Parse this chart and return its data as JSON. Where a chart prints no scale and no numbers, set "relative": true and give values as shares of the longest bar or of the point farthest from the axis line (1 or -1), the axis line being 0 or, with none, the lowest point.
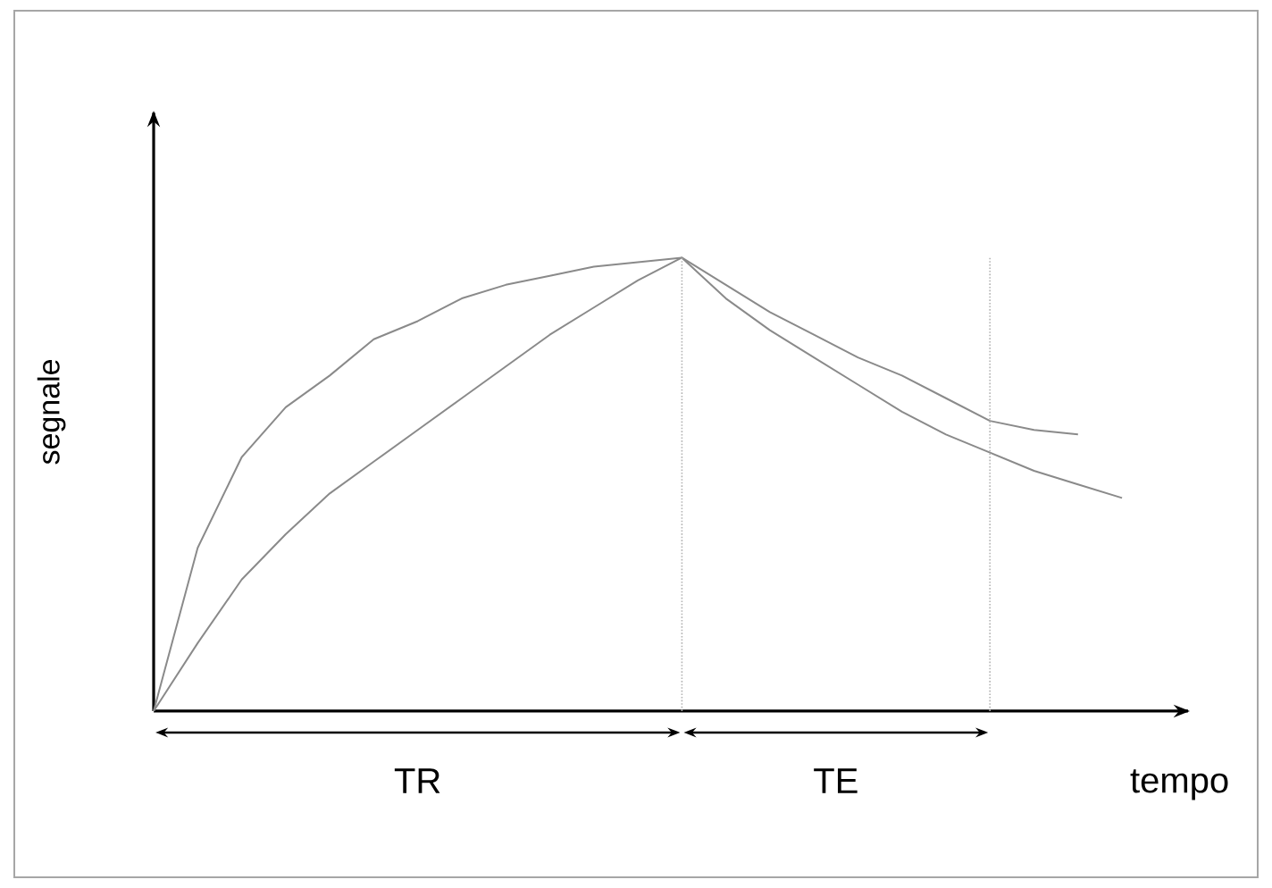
{
  "chart_data": {
    "type": "line",
    "relative": true,
    "xlabel": "tempo",
    "ylabel": "segnale",
    "categories": [
      null,
      null,
      null,
      null,
      null,
      null,
      null,
      null,
      null,
      null,
      null,
      null,
      null,
      null,
      null,
      null,
      null,
      null,
      null,
      null,
      null,
      null,
      null
    ],
    "series": [
      {
        "color": "#8a8a8a",
        "values": [
          0,
          0.36,
          0.56,
          0.67,
          0.74,
          0.82,
          0.86,
          0.91,
          0.94,
          0.96,
          0.98,
          0.99,
          1,
          0.94,
          0.88,
          0.83,
          0.78,
          0.74,
          0.69,
          0.64,
          0.62,
          0.61,
          null
        ]
      },
      {
        "color": "#8a8a8a",
        "values": [
          0,
          0.15,
          0.29,
          0.39,
          0.48,
          0.55,
          0.62,
          0.69,
          0.76,
          0.83,
          0.89,
          0.95,
          1,
          0.91,
          0.84,
          0.78,
          0.72,
          0.66,
          0.61,
          0.57,
          0.53,
          0.5,
          0.47
        ]
      }
    ],
    "annotations": [
      "TR",
      "TE"
    ]
  }
}
